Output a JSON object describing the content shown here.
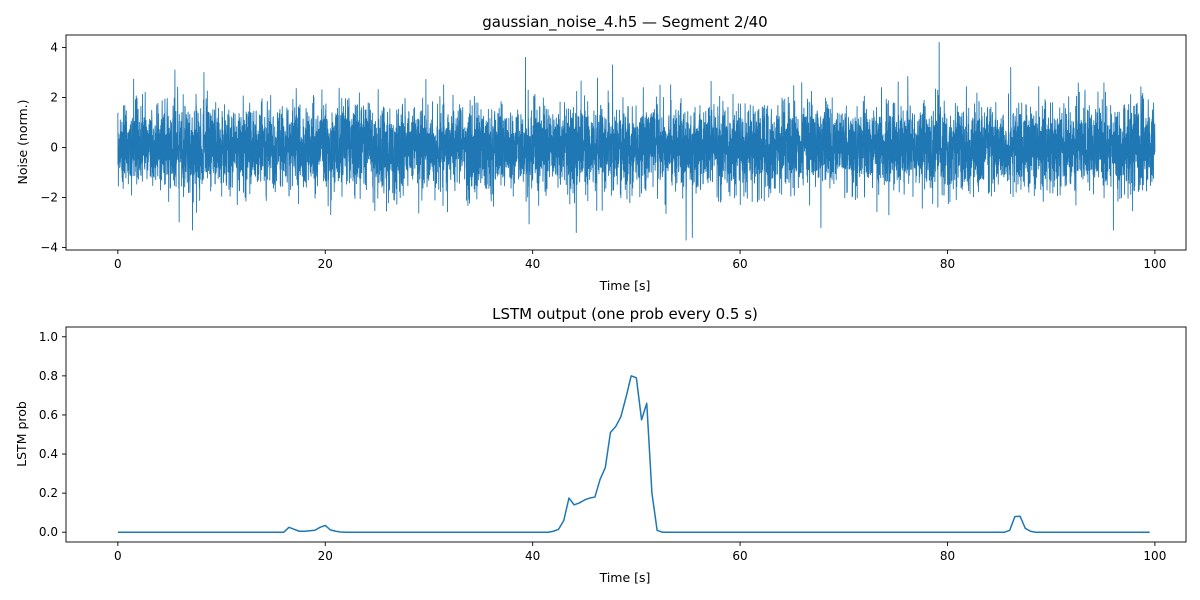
{
  "chart_data": [
    {
      "type": "line",
      "title": "gaussian_noise_4.h5 — Segment 2/40",
      "xlabel": "Time [s]",
      "ylabel": "Noise (norm.)",
      "xlim": [
        -5,
        103
      ],
      "ylim": [
        -4.1,
        4.5
      ],
      "xticks": [
        0,
        20,
        40,
        60,
        80,
        100
      ],
      "yticks": [
        -4,
        -2,
        0,
        2,
        4
      ],
      "grid": false,
      "legend": "none",
      "color": "#1f77b4",
      "series": [
        {
          "x_range": [
            0,
            100
          ],
          "distribution": "gaussian",
          "mean": 0,
          "std": 0.85,
          "peaks": [
            {
              "x": 5.5,
              "y": 3.1
            },
            {
              "x": 8.3,
              "y": 3.0
            },
            {
              "x": 39.3,
              "y": 3.6
            },
            {
              "x": 47.7,
              "y": 3.3
            },
            {
              "x": 79.2,
              "y": 4.2
            },
            {
              "x": 86.1,
              "y": 3.2
            },
            {
              "x": 54.8,
              "y": -3.7
            },
            {
              "x": 55.4,
              "y": -3.6
            },
            {
              "x": 44.2,
              "y": -3.4
            },
            {
              "x": 7.2,
              "y": -3.3
            },
            {
              "x": 96.0,
              "y": -3.3
            },
            {
              "x": 67.8,
              "y": -3.2
            }
          ]
        }
      ]
    },
    {
      "type": "line",
      "title": "LSTM output (one prob every 0.5 s)",
      "xlabel": "Time [s]",
      "ylabel": "LSTM prob",
      "xlim": [
        -5,
        103
      ],
      "ylim": [
        -0.05,
        1.05
      ],
      "xticks": [
        0,
        20,
        40,
        60,
        80,
        100
      ],
      "yticks": [
        0.0,
        0.2,
        0.4,
        0.6,
        0.8,
        1.0
      ],
      "grid": false,
      "legend": "none",
      "color": "#1f77b4",
      "series": [
        {
          "x": [
            0,
            16,
            16.5,
            17,
            17.5,
            18,
            19,
            19.5,
            20,
            20.5,
            21,
            21.5,
            22,
            41.5,
            42,
            42.5,
            43,
            43.5,
            44,
            44.5,
            45,
            45.5,
            46,
            46.5,
            47,
            47.5,
            48,
            48.5,
            49,
            49.5,
            50,
            50.5,
            51,
            51.5,
            52,
            52.5,
            85.5,
            86,
            86.5,
            87,
            87.5,
            88,
            88.5,
            99.5
          ],
          "y": [
            0.0,
            0.0,
            0.025,
            0.015,
            0.005,
            0.005,
            0.01,
            0.025,
            0.035,
            0.012,
            0.005,
            0.001,
            0.0,
            0.0,
            0.005,
            0.015,
            0.06,
            0.175,
            0.14,
            0.15,
            0.165,
            0.175,
            0.18,
            0.27,
            0.33,
            0.51,
            0.54,
            0.59,
            0.69,
            0.8,
            0.79,
            0.575,
            0.66,
            0.2,
            0.01,
            0.0,
            0.0,
            0.01,
            0.08,
            0.082,
            0.02,
            0.005,
            0.0,
            0.0
          ]
        }
      ]
    }
  ]
}
